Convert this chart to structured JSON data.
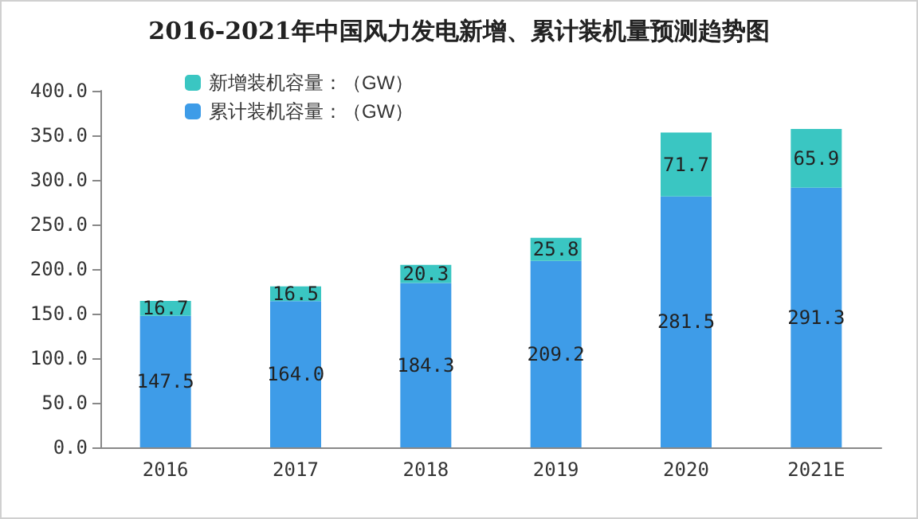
{
  "chart_data": {
    "type": "bar",
    "title": "2016-2021年中国风力发电新增、累计装机量预测趋势图",
    "categories": [
      "2016",
      "2017",
      "2018",
      "2019",
      "2020",
      "2021E"
    ],
    "stacked": true,
    "series": [
      {
        "name": "累计装机容量：（GW）",
        "color": "#3e9ce8",
        "values": [
          147.5,
          164.0,
          184.3,
          209.2,
          281.5,
          291.3
        ],
        "value_labels": [
          "147.5",
          "164.0",
          "184.3",
          "209.2",
          "281.5",
          "291.3"
        ]
      },
      {
        "name": "新增装机容量：（GW）",
        "color": "#3ac6c2",
        "values": [
          16.7,
          16.5,
          20.3,
          25.8,
          71.7,
          65.9
        ],
        "value_labels": [
          "16.7",
          "16.5",
          "20.3",
          "25.8",
          "71.7",
          "65.9"
        ]
      }
    ],
    "ylim": [
      0,
      400
    ],
    "yticks": [
      {
        "value": 0,
        "label": "0.0"
      },
      {
        "value": 50,
        "label": "50.0"
      },
      {
        "value": 100,
        "label": "100.0"
      },
      {
        "value": 150,
        "label": "150.0"
      },
      {
        "value": 200,
        "label": "200.0"
      },
      {
        "value": 250,
        "label": "250.0"
      },
      {
        "value": 300,
        "label": "300.0"
      },
      {
        "value": 350,
        "label": "350.0"
      },
      {
        "value": 400,
        "label": "400.0"
      }
    ],
    "grid": false,
    "legend": "top left"
  }
}
